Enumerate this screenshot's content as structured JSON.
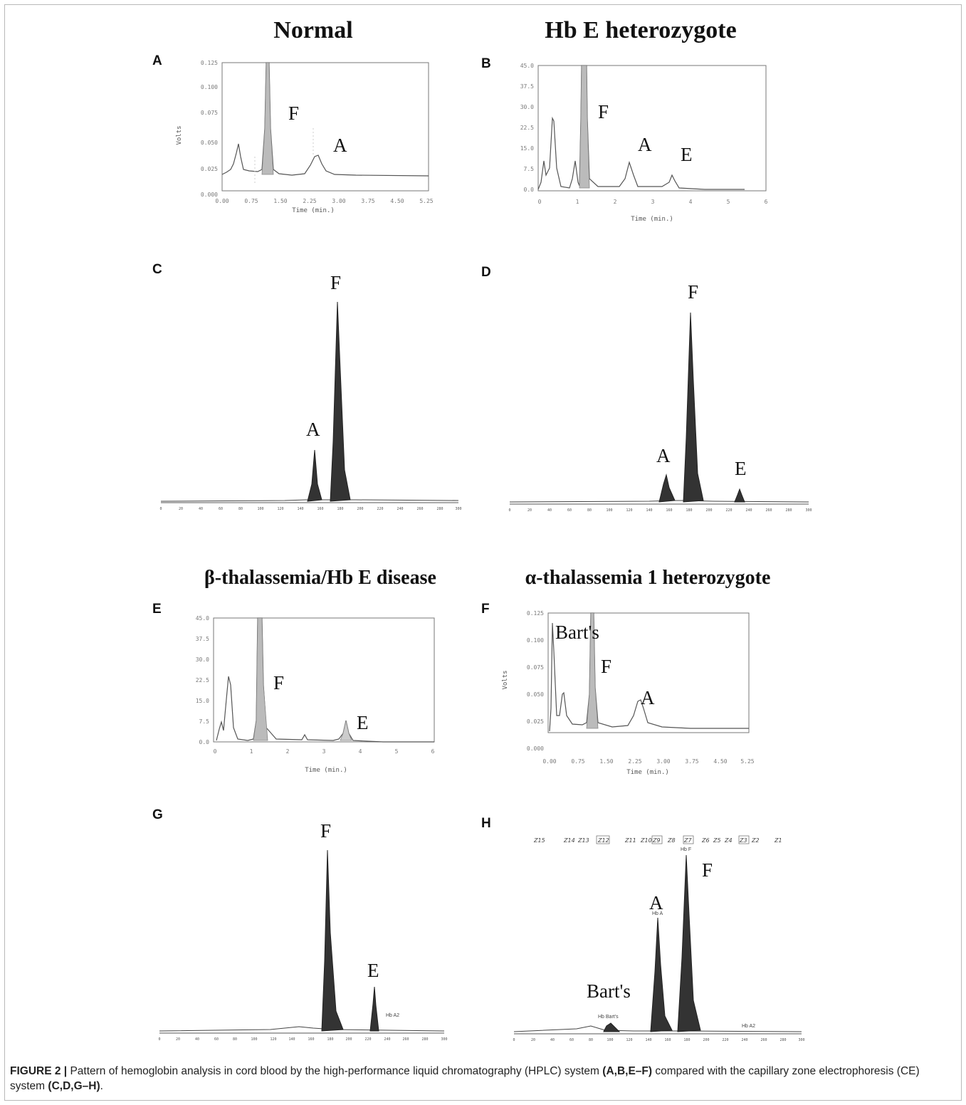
{
  "column_titles": {
    "normal": "Normal",
    "hbe_het": "Hb E heterozygote",
    "beta_thal": "β-thalassemia/Hb  E disease",
    "alpha_thal": "α-thalassemia 1 heterozygote"
  },
  "panels": {
    "A": {
      "letter": "A",
      "ylabel": "Volts",
      "xlabel": "Time (min.)",
      "yticks": [
        "0.125",
        "0.100",
        "0.075",
        "0.050",
        "0.025",
        "0.000"
      ],
      "xticks": [
        "0.00",
        "0.75",
        "1.50",
        "2.25",
        "3.00",
        "3.75",
        "4.50",
        "5.25"
      ],
      "peaks": [
        "F",
        "A"
      ]
    },
    "B": {
      "letter": "B",
      "xlabel": "Time (min.)",
      "yticks": [
        "45.0",
        "37.5",
        "30.0",
        "22.5",
        "15.0",
        "7.5",
        "0.0"
      ],
      "xticks": [
        "0",
        "1",
        "2",
        "3",
        "4",
        "5",
        "6"
      ],
      "peaks": [
        "F",
        "A",
        "E"
      ]
    },
    "C": {
      "letter": "C",
      "peaks": [
        "A",
        "F"
      ],
      "xticks": [
        "0",
        "20",
        "40",
        "60",
        "80",
        "100",
        "120",
        "140",
        "160",
        "180",
        "200",
        "220",
        "240",
        "260",
        "280",
        "300"
      ]
    },
    "D": {
      "letter": "D",
      "peaks": [
        "A",
        "F",
        "E"
      ],
      "xticks": [
        "0",
        "20",
        "40",
        "60",
        "80",
        "100",
        "120",
        "140",
        "160",
        "180",
        "200",
        "220",
        "240",
        "260",
        "280",
        "300"
      ]
    },
    "E": {
      "letter": "E",
      "xlabel": "Time (min.)",
      "yticks": [
        "45.0",
        "37.5",
        "30.0",
        "22.5",
        "15.0",
        "7.5",
        "0.0"
      ],
      "xticks": [
        "0",
        "1",
        "2",
        "3",
        "4",
        "5",
        "6"
      ],
      "peaks": [
        "F",
        "E"
      ]
    },
    "F": {
      "letter": "F",
      "ylabel": "Volts",
      "xlabel": "Time (min.)",
      "yticks": [
        "0.125",
        "0.100",
        "0.075",
        "0.050",
        "0.025",
        "0.000"
      ],
      "xticks": [
        "0.00",
        "0.75",
        "1.50",
        "2.25",
        "3.00",
        "3.75",
        "4.50",
        "5.25"
      ],
      "peaks": [
        "Bart's",
        "F",
        "A"
      ]
    },
    "G": {
      "letter": "G",
      "peaks": [
        "F",
        "E"
      ],
      "small_labels": [
        "Hb A2"
      ],
      "xticks": [
        "0",
        "20",
        "40",
        "60",
        "80",
        "100",
        "120",
        "140",
        "160",
        "180",
        "200",
        "220",
        "240",
        "260",
        "280",
        "300"
      ]
    },
    "H": {
      "letter": "H",
      "peaks": [
        "A",
        "F",
        "Bart's"
      ],
      "small_labels": [
        "Hb Bart's",
        "Hb A",
        "Hb F",
        "Hb A2"
      ],
      "zones": [
        "Z15",
        "Z14",
        "Z13",
        "Z12",
        "Z11",
        "Z10",
        "Z9",
        "Z8",
        "Z7",
        "Z6",
        "Z5",
        "Z4",
        "Z3",
        "Z2",
        "Z1"
      ],
      "xticks": [
        "0",
        "20",
        "40",
        "60",
        "80",
        "100",
        "120",
        "140",
        "160",
        "180",
        "200",
        "220",
        "240",
        "260",
        "280",
        "300"
      ]
    }
  },
  "caption": {
    "label": "FIGURE 2 |",
    "text1": " Pattern of hemoglobin analysis in cord blood by the high-performance liquid chromatography (HPLC) system ",
    "ref1": "(A,B,E–F)",
    "text2": " compared with the capillary zone electrophoresis (CE) system ",
    "ref2": "(C,D,G–H)",
    "text3": "."
  }
}
